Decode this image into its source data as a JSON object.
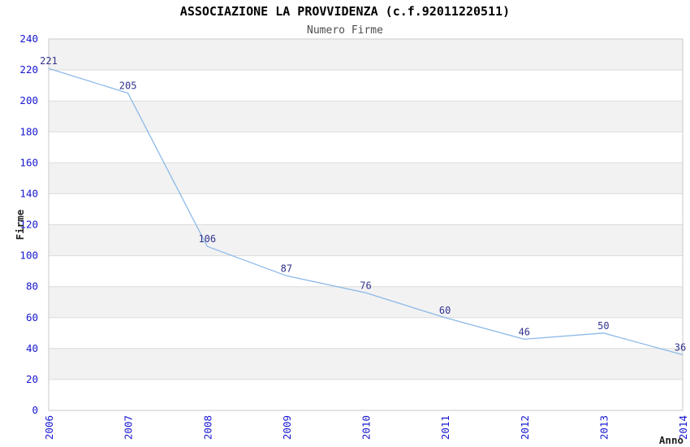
{
  "page": {
    "background": "#ffffff"
  },
  "chart_data": {
    "type": "line",
    "title": "ASSOCIAZIONE LA PROVVIDENZA (c.f.92011220511)",
    "subtitle": "Numero Firme",
    "xlabel": "Anno",
    "ylabel": "Firme",
    "categories": [
      "2006",
      "2007",
      "2008",
      "2009",
      "2010",
      "2011",
      "2012",
      "2013",
      "2014"
    ],
    "series": [
      {
        "name": "Numero Firme",
        "values": [
          221,
          205,
          106,
          87,
          76,
          60,
          46,
          50,
          36
        ]
      }
    ],
    "ylim": [
      0,
      240
    ],
    "ytick_step": 20,
    "grid": true,
    "legend_position": "none",
    "band_fill": "alternating",
    "colors": {
      "line": "#8cb9e8",
      "point_label": "#32328f",
      "tick_label": "#1717d0",
      "axis_title": "#222222",
      "title": "#000000",
      "subtitle": "#4d4d4d",
      "band_dark": "#f2f2f2",
      "band_light": "#ffffff",
      "gridline": "#dcdcdc",
      "border": "#c9c9c9",
      "background": "#ffffff"
    }
  }
}
